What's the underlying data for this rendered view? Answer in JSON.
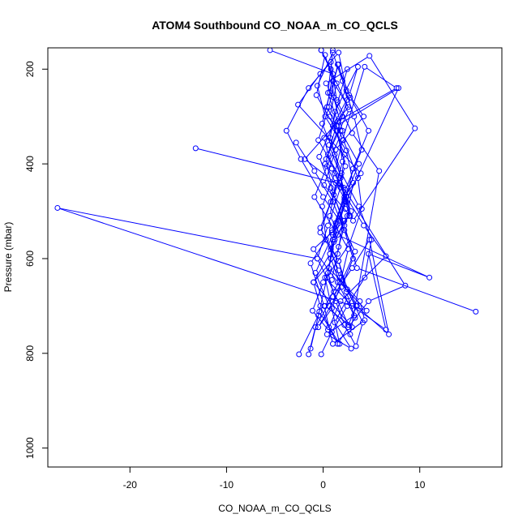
{
  "chart_data": {
    "type": "line",
    "title": "ATOM4 Southbound CO_NOAA_m_CO_QCLS",
    "xlabel": "CO_NOAA_m_CO_QCLS",
    "ylabel": "Pressure (mbar)",
    "xlim": [
      -28.5,
      18.5
    ],
    "ylim": [
      1040,
      155
    ],
    "y_reversed": true,
    "xticks": [
      -20,
      -10,
      0,
      10
    ],
    "yticks": [
      200,
      400,
      600,
      800,
      1000
    ],
    "grid": false,
    "legend": "none",
    "series_color": "#0000ff",
    "marker": "open-circle",
    "series": [
      {
        "x": [
          -1.3,
          -0.4,
          1.7,
          0.2,
          3.0,
          6.5,
          4.7,
          11.0,
          1.5,
          -0.9,
          0.4,
          2.0,
          1.1,
          0.8,
          -0.2,
          2.7,
          0.5,
          1.9,
          3.1,
          9.5,
          4.8,
          0.3,
          2.0,
          -1.9,
          2.5,
          1.0,
          0.6,
          3.8,
          4.3,
          1.0,
          0.1,
          -1.3,
          0.9,
          2.2,
          3.9,
          -2.6,
          -0.3,
          1.6,
          2.4,
          4.2,
          1.3,
          0.1,
          2.8,
          -1.0,
          1.5,
          3.2,
          0.4,
          2.9,
          1.2,
          2.6
        ],
        "y": [
          790,
          712,
          780,
          640,
          700,
          750,
          590,
          640,
          550,
          470,
          405,
          330,
          260,
          200,
          160,
          285,
          380,
          450,
          520,
          325,
          172,
          230,
          300,
          390,
          460,
          560,
          620,
          690,
          730,
          780,
          700,
          610,
          540,
          470,
          420,
          275,
          210,
          165,
          245,
          300,
          370,
          445,
          510,
          580,
          650,
          720,
          760,
          790,
          735,
          680
        ]
      },
      {
        "x": [
          -0.2,
          1.4,
          0.7,
          2.2,
          1.8,
          0.5,
          -0.6,
          1.1,
          2.6,
          3.5,
          1.6,
          0.3,
          -0.1,
          1.2,
          2.0,
          4.3,
          7.6,
          1.5,
          0.2,
          2.4,
          1.0,
          -0.8,
          0.6,
          2.8,
          5.8,
          3.0,
          1.4,
          0.8,
          -1.5,
          -3.8,
          -2.3,
          0.0,
          1.7,
          3.3,
          2.0,
          0.9,
          -0.5,
          1.9,
          3.1,
          2.2,
          1.0,
          -0.9,
          -2.8
        ],
        "y": [
          160,
          230,
          300,
          380,
          450,
          530,
          600,
          670,
          740,
          700,
          625,
          560,
          490,
          420,
          350,
          195,
          240,
          310,
          400,
          480,
          550,
          630,
          700,
          760,
          415,
          335,
          265,
          185,
          240,
          330,
          390,
          470,
          520,
          585,
          645,
          705,
          745,
          660,
          600,
          540,
          480,
          415,
          355
        ]
      },
      {
        "x": [
          -5.5,
          1.0,
          0.4,
          2.1,
          3.6,
          4.0,
          2.7,
          0.0,
          -1.1,
          0.5,
          1.8,
          6.5,
          4.2,
          2.4,
          0.9,
          0.1,
          2.6,
          1.0,
          0.2,
          -0.7,
          1.4,
          2.3,
          0.8,
          -0.3,
          1.6,
          2.5,
          4.1,
          3.4,
          2.2,
          1.3,
          0.5,
          1.1,
          2.9,
          1.7
        ],
        "y": [
          160,
          210,
          280,
          350,
          430,
          495,
          570,
          650,
          710,
          750,
          690,
          595,
          530,
          470,
          410,
          345,
          280,
          225,
          170,
          255,
          330,
          405,
          480,
          545,
          605,
          665,
          735,
          785,
          740,
          690,
          630,
          565,
          500,
          440
        ]
      },
      {
        "x": [
          -13.2,
          1.3,
          0.7,
          2.6,
          1.9,
          0.2,
          3.0,
          -1.0,
          1.5,
          2.1,
          0.8,
          -0.4,
          1.0,
          2.7,
          3.6,
          1.2,
          0.6,
          1.8,
          2.3
        ],
        "y": [
          367,
          440,
          510,
          580,
          640,
          700,
          745,
          650,
          590,
          520,
          450,
          385,
          320,
          255,
          195,
          290,
          360,
          425,
          495
        ]
      },
      {
        "x": [
          1.0,
          0.5,
          1.8,
          3.7,
          2.2,
          0.9,
          7.8,
          1.4,
          2.0,
          1.1,
          -0.3,
          1.6,
          2.4,
          3.3
        ],
        "y": [
          160,
          250,
          330,
          400,
          475,
          545,
          240,
          320,
          395,
          465,
          535,
          605,
          670,
          725
        ]
      },
      {
        "x": [
          -0.6,
          -27.5,
          4.5,
          1.7,
          0.8
        ],
        "y": [
          600,
          493,
          710,
          650,
          600
        ]
      },
      {
        "x": [
          15.8,
          3.5,
          2.2,
          1.0,
          0.3,
          1.5,
          2.5,
          1.6,
          0.7,
          -0.1,
          1.2,
          2.1,
          8.5,
          4.7,
          2.6,
          1.5,
          0.6,
          -0.3,
          -1.0,
          0.7,
          1.3,
          2.3,
          4.0,
          3.2,
          2.0,
          1.0,
          -0.6,
          0.2,
          2.4,
          3.1,
          2.5,
          1.6,
          0.9
        ],
        "y": [
          712,
          620,
          530,
          460,
          390,
          330,
          265,
          190,
          250,
          315,
          380,
          450,
          657,
          690,
          745,
          780,
          745,
          700,
          650,
          590,
          525,
          455,
          370,
          300,
          225,
          165,
          235,
          300,
          372,
          440,
          510,
          575,
          645
        ]
      },
      {
        "x": [
          -2.5,
          -0.5,
          0.4,
          1.2,
          2.3,
          3.1,
          4.7,
          2.8,
          1.5,
          0.6,
          -0.5,
          1.8,
          2.7
        ],
        "y": [
          802,
          720,
          640,
          560,
          480,
          410,
          330,
          260,
          190,
          280,
          350,
          430,
          510
        ]
      },
      {
        "x": [
          -0.2,
          0.9,
          2.5,
          4.3,
          5.0,
          3.7,
          1.9,
          0.7,
          1.5,
          2.5
        ],
        "y": [
          802,
          755,
          700,
          640,
          560,
          490,
          420,
          345,
          270,
          200
        ]
      },
      {
        "x": [
          -1.5,
          -0.8,
          1.0,
          3.0,
          4.8,
          6.8,
          3.4,
          1.7,
          0.8,
          2.2
        ],
        "y": [
          802,
          745,
          680,
          620,
          560,
          760,
          700,
          640,
          580,
          520
        ]
      }
    ]
  }
}
